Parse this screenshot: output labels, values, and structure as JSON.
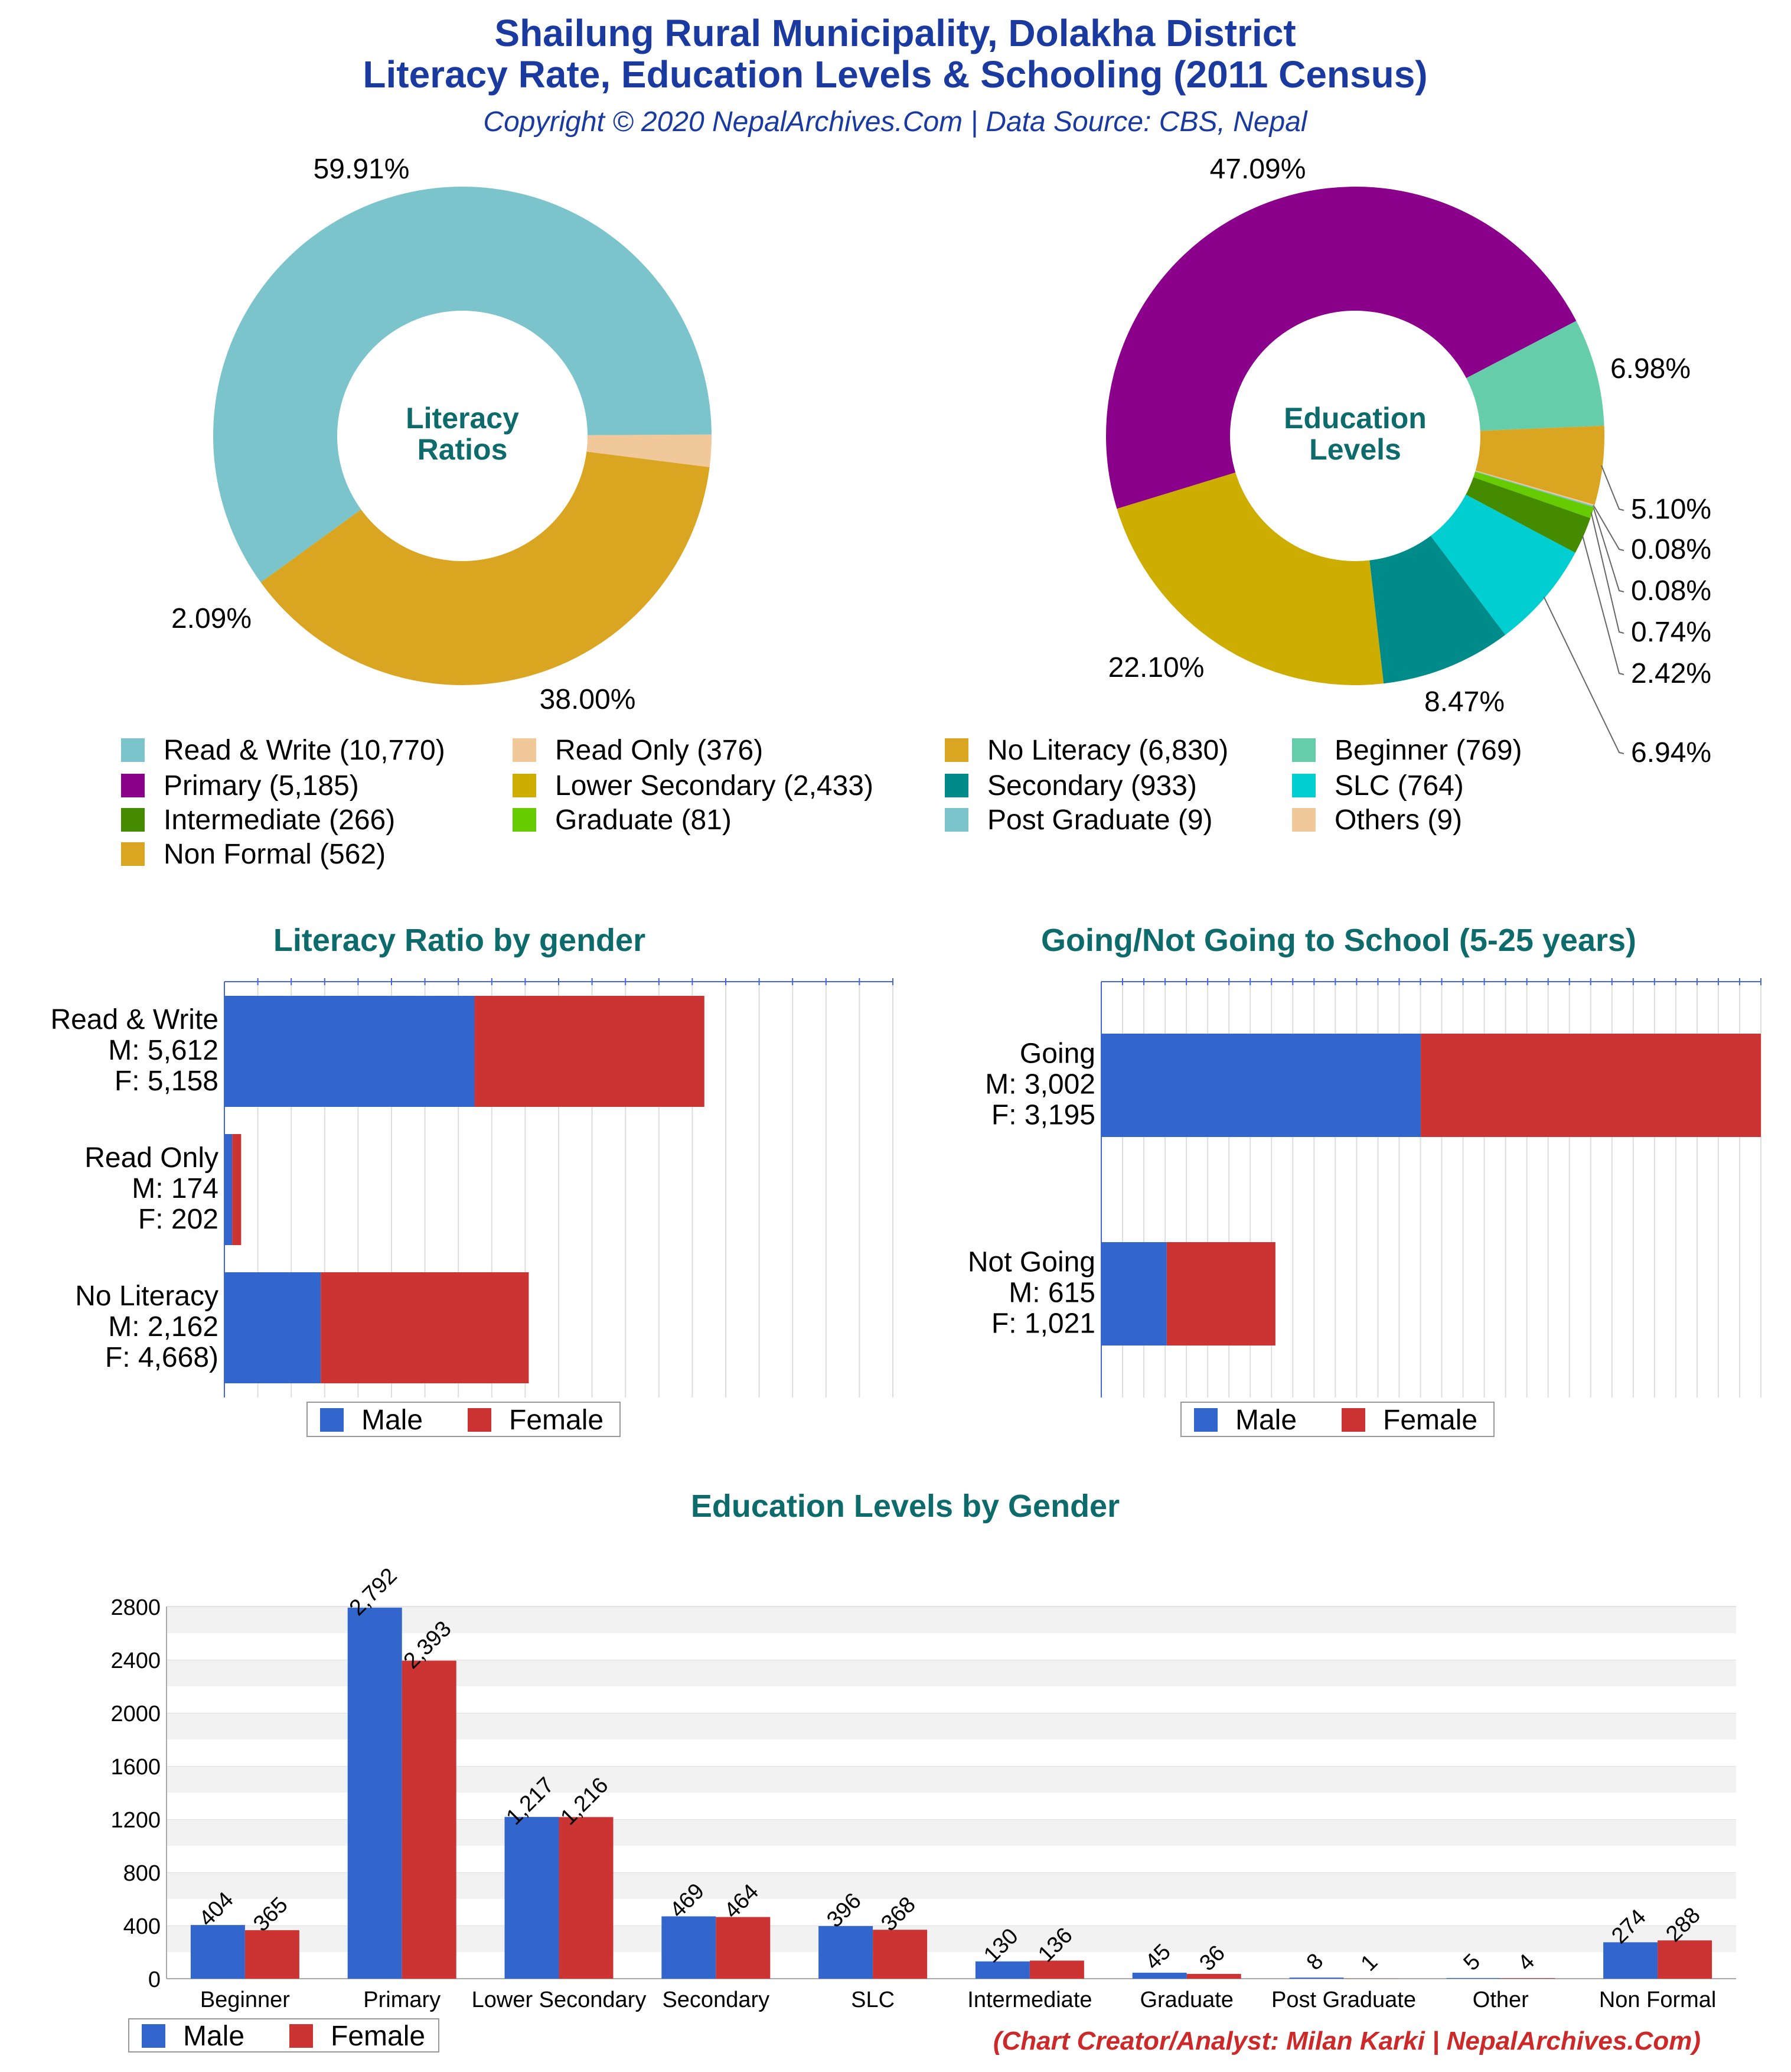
{
  "header": {
    "title_line1": "Shailung Rural Municipality, Dolakha District",
    "title_line2": "Literacy Rate, Education Levels & Schooling (2011 Census)",
    "subtitle": "Copyright © 2020 NepalArchives.Com | Data Source: CBS, Nepal"
  },
  "footer": {
    "credit": "(Chart Creator/Analyst: Milan Karki | NepalArchives.Com)"
  },
  "colors": {
    "male": "#3366cc",
    "female": "#cc3333",
    "title": "#1a3aa0",
    "section_title": "#0d6b6b"
  },
  "chart_data": [
    {
      "type": "pie",
      "variant": "donut",
      "center_label": [
        "Literacy",
        "Ratios"
      ],
      "slices": [
        {
          "label": "Read & Write",
          "value": 10770,
          "percent_label": "59.91%",
          "color": "#7cc4cc"
        },
        {
          "label": "Read Only",
          "value": 376,
          "percent_label": "2.09%",
          "color": "#f0c89a"
        },
        {
          "label": "No Literacy",
          "value": 6830,
          "percent_label": "38.00%",
          "color": "#daa520"
        }
      ]
    },
    {
      "type": "pie",
      "variant": "donut",
      "center_label": [
        "Education",
        "Levels"
      ],
      "slices": [
        {
          "label": "Primary",
          "value": 5185,
          "percent_label": "47.09%",
          "color": "#8b008b"
        },
        {
          "label": "Beginner",
          "value": 769,
          "percent_label": "6.98%",
          "color": "#66cdaa"
        },
        {
          "label": "Non Formal",
          "value": 562,
          "percent_label": "5.10%",
          "color": "#daa520"
        },
        {
          "label": "Others",
          "value": 9,
          "percent_label": "0.08%",
          "color": "#f0c89a"
        },
        {
          "label": "Post Graduate",
          "value": 9,
          "percent_label": "0.08%",
          "color": "#7cc4cc"
        },
        {
          "label": "Graduate",
          "value": 81,
          "percent_label": "0.74%",
          "color": "#66cc00"
        },
        {
          "label": "Intermediate",
          "value": 266,
          "percent_label": "2.42%",
          "color": "#458b00"
        },
        {
          "label": "SLC",
          "value": 764,
          "percent_label": "6.94%",
          "color": "#00ced1"
        },
        {
          "label": "Secondary",
          "value": 933,
          "percent_label": "8.47%",
          "color": "#008b8b"
        },
        {
          "label": "Lower Secondary",
          "value": 2433,
          "percent_label": "22.10%",
          "color": "#cdad00"
        }
      ]
    },
    {
      "type": "legend",
      "items": [
        {
          "text": "Read & Write (10,770)",
          "color": "#7cc4cc"
        },
        {
          "text": "Read Only (376)",
          "color": "#f0c89a"
        },
        {
          "text": "No Literacy (6,830)",
          "color": "#daa520"
        },
        {
          "text": "Beginner (769)",
          "color": "#66cdaa"
        },
        {
          "text": "Primary (5,185)",
          "color": "#8b008b"
        },
        {
          "text": "Lower Secondary (2,433)",
          "color": "#cdad00"
        },
        {
          "text": "Secondary (933)",
          "color": "#008b8b"
        },
        {
          "text": "SLC (764)",
          "color": "#00ced1"
        },
        {
          "text": "Intermediate (266)",
          "color": "#458b00"
        },
        {
          "text": "Graduate (81)",
          "color": "#66cc00"
        },
        {
          "text": "Post Graduate (9)",
          "color": "#7cc4cc"
        },
        {
          "text": "Others (9)",
          "color": "#f0c89a"
        },
        {
          "text": "Non Formal (562)",
          "color": "#daa520"
        }
      ]
    },
    {
      "type": "bar",
      "orientation": "horizontal",
      "stacked": true,
      "title": "Literacy Ratio by gender",
      "xlim": [
        0,
        15000
      ],
      "categories": [
        {
          "lines": [
            "Read & Write",
            "M: 5,612",
            "F: 5,158"
          ],
          "male": 5612,
          "female": 5158
        },
        {
          "lines": [
            "Read Only",
            "M: 174",
            "F: 202"
          ],
          "male": 174,
          "female": 202
        },
        {
          "lines": [
            "No Literacy",
            "M: 2,162",
            "F: 4,668)"
          ],
          "male": 2162,
          "female": 4668
        }
      ],
      "legend": [
        "Male",
        "Female"
      ]
    },
    {
      "type": "bar",
      "orientation": "horizontal",
      "stacked": true,
      "title": "Going/Not Going to School (5-25 years)",
      "xlim": [
        0,
        6197
      ],
      "categories": [
        {
          "lines": [
            "Going",
            "M: 3,002",
            "F: 3,195"
          ],
          "male": 3002,
          "female": 3195
        },
        {
          "lines": [
            "Not Going",
            "M: 615",
            "F: 1,021"
          ],
          "male": 615,
          "female": 1021
        }
      ],
      "legend": [
        "Male",
        "Female"
      ]
    },
    {
      "type": "bar",
      "orientation": "vertical",
      "stacked": false,
      "title": "Education Levels by Gender",
      "ylim": [
        0,
        2800
      ],
      "yticks": [
        0,
        400,
        800,
        1200,
        1600,
        2000,
        2400,
        2800
      ],
      "categories": [
        "Beginner",
        "Primary",
        "Lower Secondary",
        "Secondary",
        "SLC",
        "Intermediate",
        "Graduate",
        "Post Graduate",
        "Other",
        "Non Formal"
      ],
      "series": [
        {
          "name": "Male",
          "values": [
            404,
            2792,
            1217,
            469,
            396,
            130,
            45,
            8,
            5,
            274
          ],
          "labels": [
            "404",
            "2,792",
            "1,217",
            "469",
            "396",
            "130",
            "45",
            "8",
            "5",
            "274"
          ]
        },
        {
          "name": "Female",
          "values": [
            365,
            2393,
            1216,
            464,
            368,
            136,
            36,
            1,
            4,
            288
          ],
          "labels": [
            "365",
            "2,393",
            "1,216",
            "464",
            "368",
            "136",
            "36",
            "1",
            "4",
            "288"
          ]
        }
      ],
      "legend": [
        "Male",
        "Female"
      ]
    }
  ]
}
